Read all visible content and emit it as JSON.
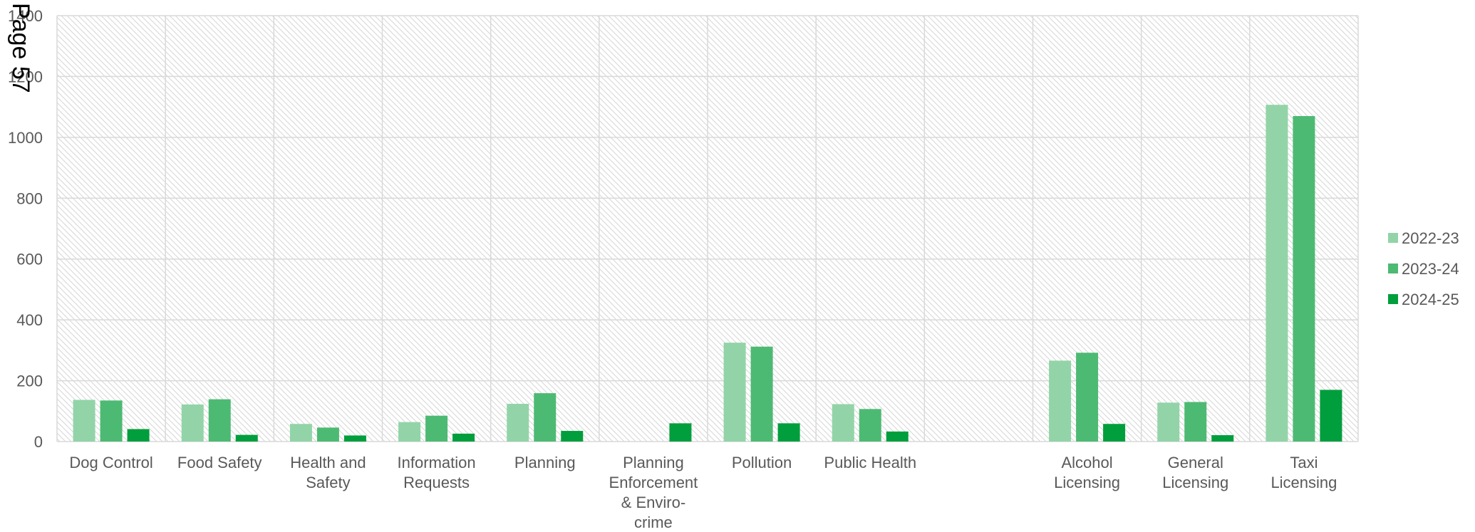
{
  "page_label": "Page 57",
  "chart_data": {
    "type": "bar",
    "categories": [
      [
        "Dog Control"
      ],
      [
        "Food Safety"
      ],
      [
        "Health and",
        "Safety"
      ],
      [
        "Information",
        "Requests"
      ],
      [
        "Planning"
      ],
      [
        "Planning",
        "Enforcement",
        "& Enviro-",
        "crime"
      ],
      [
        "Pollution"
      ],
      [
        "Public Health"
      ],
      [
        ""
      ],
      [
        "Alcohol",
        "Licensing"
      ],
      [
        "General",
        "Licensing"
      ],
      [
        "Taxi",
        "Licensing"
      ]
    ],
    "series": [
      {
        "name": "2022-23",
        "color": "#92d4a8",
        "values": [
          137,
          122,
          58,
          64,
          124,
          null,
          325,
          123,
          null,
          266,
          128,
          1107
        ]
      },
      {
        "name": "2023-24",
        "color": "#4dba73",
        "values": [
          135,
          139,
          46,
          85,
          159,
          null,
          312,
          107,
          null,
          292,
          130,
          1070
        ]
      },
      {
        "name": "2024-25",
        "color": "#009e3c",
        "values": [
          41,
          22,
          20,
          26,
          35,
          60,
          60,
          33,
          null,
          58,
          21,
          170
        ]
      }
    ],
    "ylim": [
      0,
      1400
    ],
    "yticks": [
      0,
      200,
      400,
      600,
      800,
      1000,
      1200,
      1400
    ],
    "grid": true,
    "legend_position": "right",
    "title": "",
    "xlabel": "",
    "ylabel": ""
  }
}
